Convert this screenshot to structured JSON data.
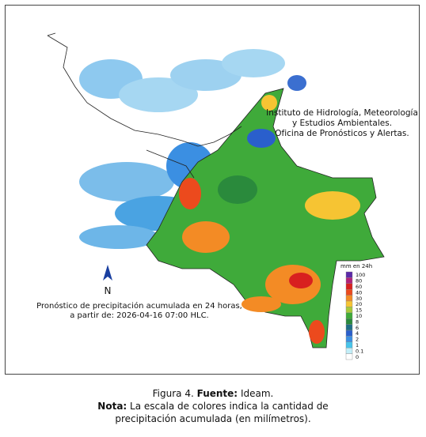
{
  "institution": {
    "line1": "Instituto de Hidrología, Meteorología",
    "line2": "y Estudios Ambientales.",
    "line3": "Oficina de Pronósticos y Alertas."
  },
  "north_label": "N",
  "forecast": {
    "line1": "Pronóstico de precipitación acumulada en 24 horas,",
    "line2": "a partir de: 2026-04-16 07:00 HLC."
  },
  "legend": {
    "title": "mm en 24h",
    "items": [
      {
        "value": 100,
        "color": "#5b2aa8"
      },
      {
        "value": 80,
        "color": "#b0227a"
      },
      {
        "value": 60,
        "color": "#d8201f"
      },
      {
        "value": 40,
        "color": "#ec4a1d"
      },
      {
        "value": 30,
        "color": "#f38b25"
      },
      {
        "value": 20,
        "color": "#f6c433"
      },
      {
        "value": 15,
        "color": "#a8c93a"
      },
      {
        "value": 10,
        "color": "#3faa3a"
      },
      {
        "value": 8,
        "color": "#2a8a3c"
      },
      {
        "value": 6,
        "color": "#1f6e86"
      },
      {
        "value": 4,
        "color": "#2a5fcc"
      },
      {
        "value": 2,
        "color": "#3c8fe2"
      },
      {
        "value": 1,
        "color": "#48c4ea"
      },
      {
        "value": 0.1,
        "color": "#c2eef8"
      },
      {
        "value": 0,
        "color": "#ffffff"
      }
    ]
  },
  "caption": {
    "figure": "Figura 4.",
    "source_label": "Fuente:",
    "source": "Ideam.",
    "note_label": "Nota:",
    "note_line1": "La escala de colores indica la cantidad de",
    "note_line2": "precipitación acumulada (en milímetros)."
  }
}
